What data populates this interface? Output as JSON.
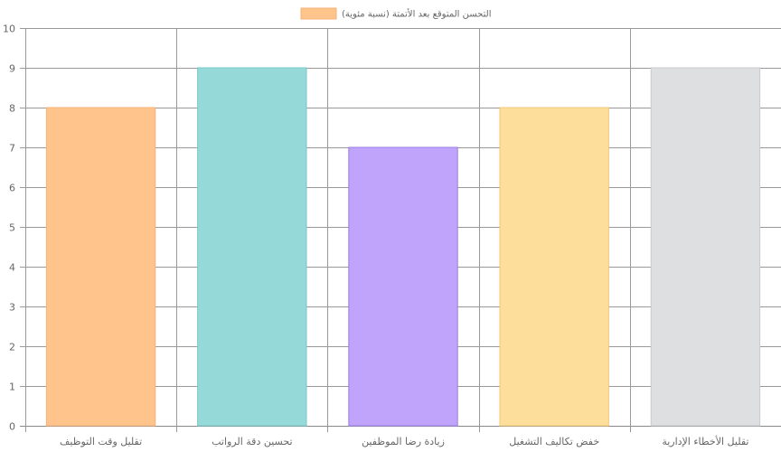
{
  "chart_data": {
    "type": "bar",
    "title": "",
    "xlabel": "",
    "ylabel": "",
    "categories": [
      "تقليل وقت التوظيف",
      "تحسين دقة الرواتب",
      "زيادة رضا الموظفين",
      "خفض تكاليف التشغيل",
      "تقليل الأخطاء الإدارية"
    ],
    "series": [
      {
        "name": "التحسن المتوقع بعد الأتمتة (نسبة مئوية)",
        "values": [
          8,
          9,
          7,
          8,
          9
        ]
      }
    ],
    "bar_colors": [
      "#FFC48C",
      "#96D9D9",
      "#C0A4FC",
      "#FDDF9B",
      "#DEDFE0"
    ],
    "bar_borders": [
      "#F4B27A",
      "#79C9C9",
      "#9C7FE6",
      "#F0C878",
      "#C9CACC"
    ],
    "legend_color": "#FFC48C",
    "ylim": [
      0,
      10
    ],
    "yticks": [
      0,
      1,
      2,
      3,
      4,
      5,
      6,
      7,
      8,
      9,
      10
    ],
    "grid": true,
    "legend_position": "top"
  }
}
